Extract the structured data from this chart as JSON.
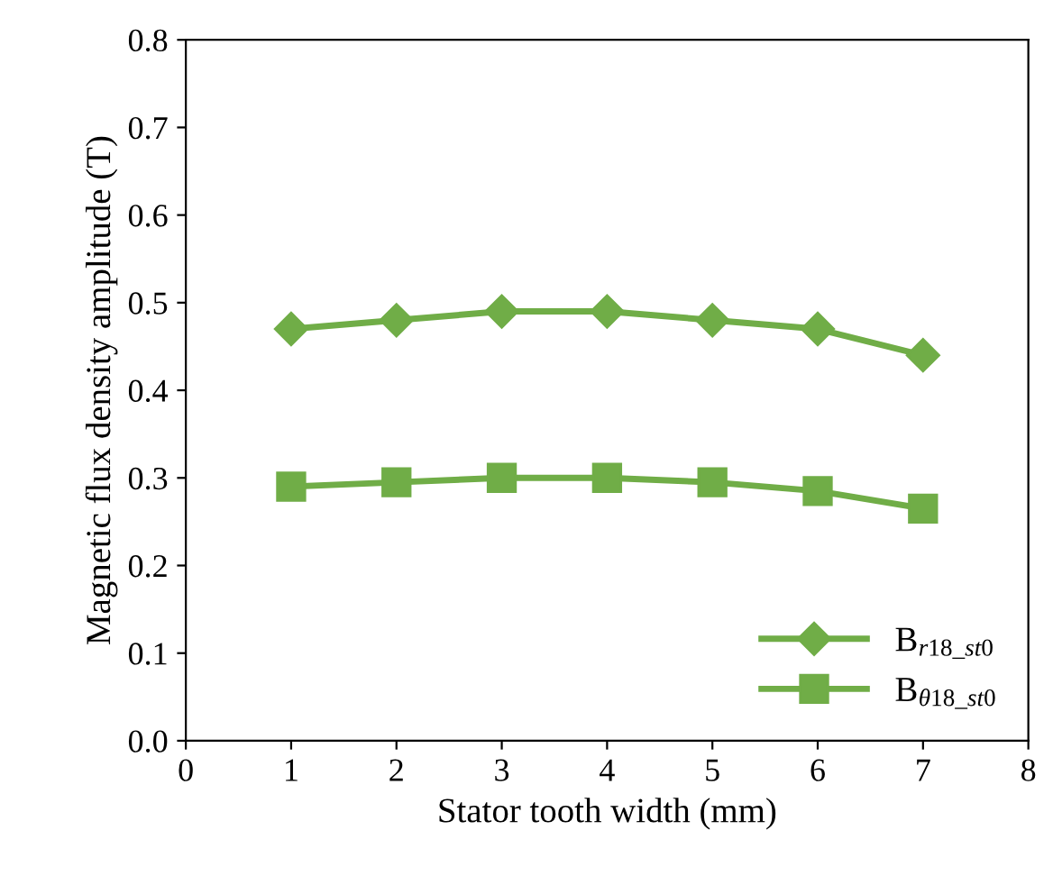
{
  "chart_data": {
    "type": "line",
    "xlabel": "Stator tooth width (mm)",
    "ylabel": "Magnetic flux density amplitude (T)",
    "x": [
      1,
      2,
      3,
      4,
      5,
      6,
      7
    ],
    "series": [
      {
        "name": "B$_{r18_st0}$",
        "color": "#70ad47",
        "marker": "diamond",
        "values": [
          0.47,
          0.48,
          0.49,
          0.49,
          0.48,
          0.47,
          0.44
        ]
      },
      {
        "name": "B$_{θ18_st0}$",
        "color": "#70ad47",
        "marker": "square",
        "values": [
          0.29,
          0.295,
          0.3,
          0.3,
          0.295,
          0.285,
          0.265
        ]
      }
    ],
    "xlim": [
      0,
      8
    ],
    "xticks": [
      0,
      1,
      2,
      3,
      4,
      5,
      6,
      7,
      8
    ],
    "ylim": [
      0,
      0.8
    ],
    "yticks": [
      {
        "value": 0,
        "label": "0.0"
      },
      0.1,
      0.2,
      0.3,
      0.4,
      0.5,
      0.6,
      0.7,
      0.8
    ],
    "grid": false,
    "legend": "bottom right",
    "line_style": "solid"
  }
}
